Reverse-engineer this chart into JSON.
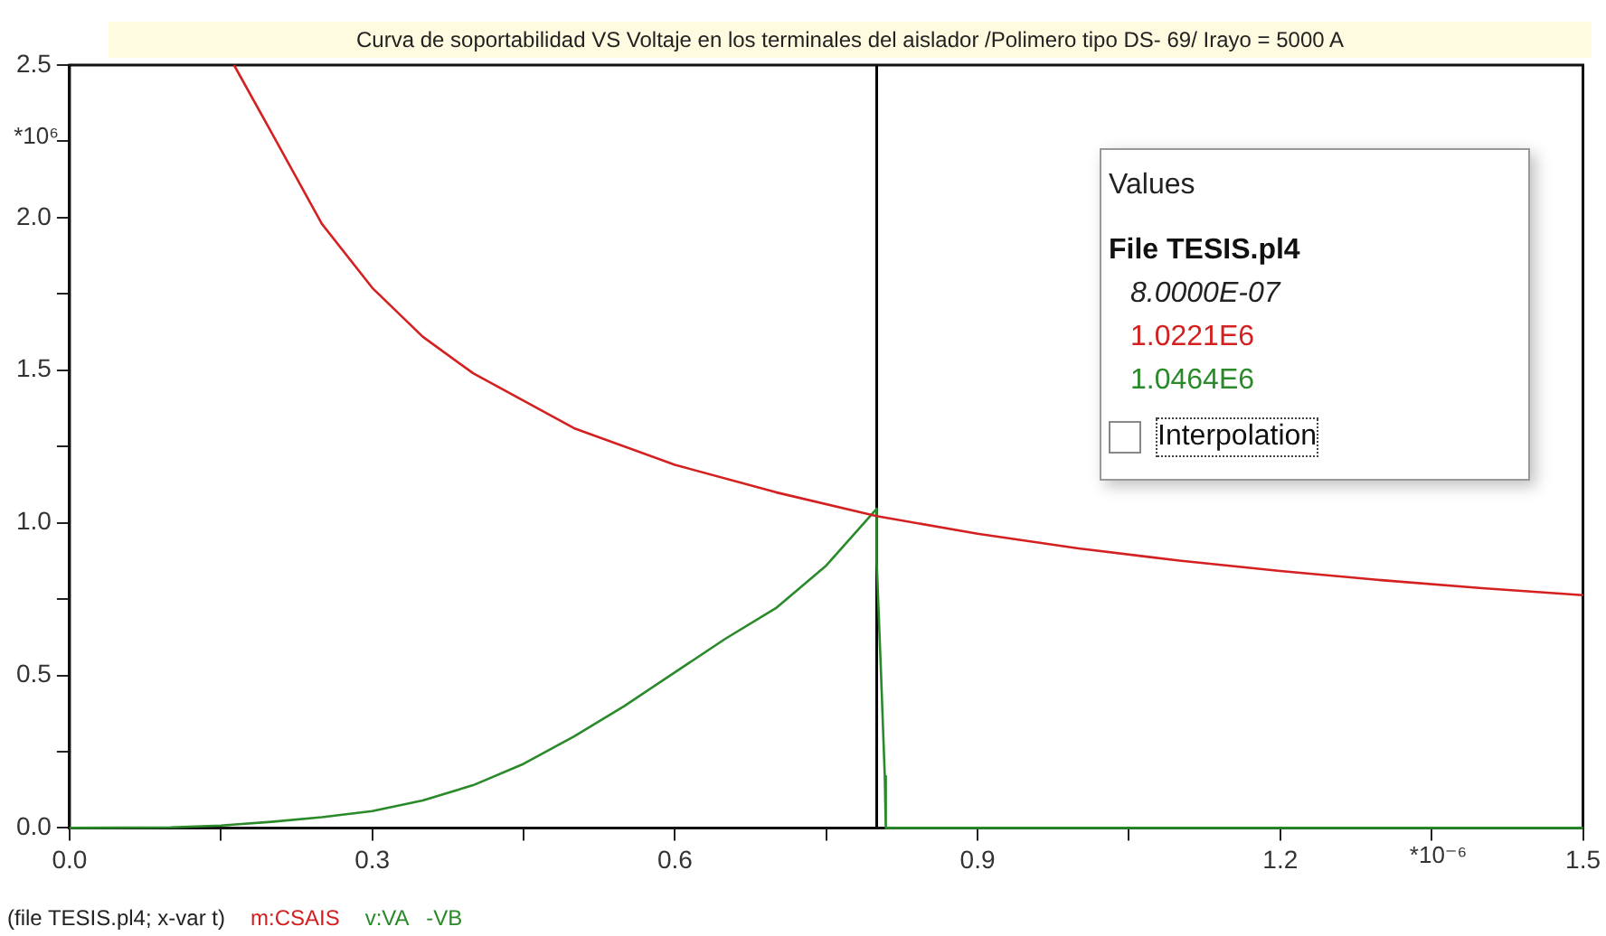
{
  "chart_data": {
    "type": "line",
    "title": "Curva de soportabilidad VS Voltaje en los terminales del aislador /Polimero tipo DS- 69/ Irayo = 5000 A",
    "xlabel": "*10⁻⁶",
    "ylabel": "*10⁶",
    "series": [
      {
        "name": "m:CSAIS",
        "color": "#d42020",
        "x": [
          0.163,
          0.2,
          0.25,
          0.3,
          0.35,
          0.4,
          0.5,
          0.6,
          0.7,
          0.8,
          0.9,
          1.0,
          1.1,
          1.2,
          1.3,
          1.4,
          1.5
        ],
        "values": [
          2.5,
          2.28,
          1.98,
          1.77,
          1.61,
          1.49,
          1.31,
          1.19,
          1.1,
          1.022,
          0.964,
          0.916,
          0.876,
          0.842,
          0.812,
          0.786,
          0.763
        ]
      },
      {
        "name": "v:VA   -VB",
        "color": "#2a8a2a",
        "x": [
          0,
          0.1,
          0.15,
          0.2,
          0.25,
          0.3,
          0.35,
          0.4,
          0.45,
          0.5,
          0.55,
          0.6,
          0.65,
          0.7,
          0.75,
          0.8,
          0.8,
          0.804,
          0.808,
          0.809,
          1.5
        ],
        "values": [
          0,
          0.002,
          0.008,
          0.02,
          0.035,
          0.055,
          0.09,
          0.14,
          0.21,
          0.3,
          0.4,
          0.51,
          0.62,
          0.72,
          0.86,
          1.046,
          0.87,
          0.53,
          0.17,
          0,
          0
        ]
      }
    ],
    "xlim": [
      0,
      1.5
    ],
    "xticks": [
      {
        "value": 0,
        "label": "0.0"
      },
      {
        "value": 0.15,
        "label": null
      },
      0.3,
      {
        "value": 0.45,
        "label": null
      },
      0.6,
      {
        "value": 0.75,
        "label": null
      },
      0.9,
      {
        "value": 1.05,
        "label": null
      },
      1.2,
      {
        "value": 1.35,
        "label": null
      },
      1.5
    ],
    "ylim": [
      0,
      2.5
    ],
    "yticks": [
      {
        "value": 0,
        "label": "0.0"
      },
      {
        "value": 0.25,
        "label": null
      },
      0.5,
      {
        "value": 0.75,
        "label": null
      },
      {
        "value": 1,
        "label": "1.0"
      },
      {
        "value": 1.25,
        "label": null
      },
      1.5,
      {
        "value": 1.75,
        "label": null
      },
      {
        "value": 2,
        "label": "2.0"
      },
      {
        "value": 2.25,
        "label": null
      },
      2.5
    ],
    "ref_lines": [
      {
        "axis": "x",
        "value": 0.8,
        "color": "#000000"
      }
    ],
    "annotations": [
      "Values",
      "File TESIS.pl4",
      "8.0000E-07",
      "1.0221E6",
      "1.0464E6",
      "Interpolation",
      "(file TESIS.pl4; x-var t)"
    ],
    "grid": false,
    "legend": "bottom left",
    "marker": "none",
    "line_style": "solid"
  }
}
